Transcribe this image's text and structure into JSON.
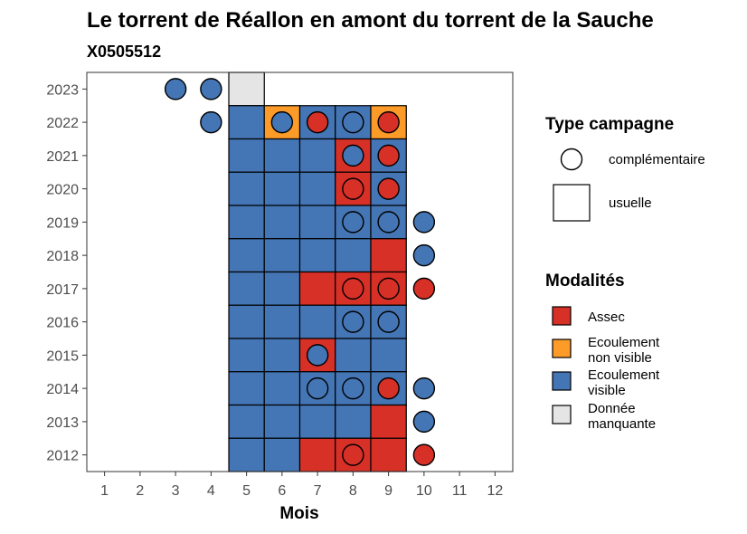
{
  "chart_data": {
    "type": "heatmap",
    "title": "Le torrent de Réallon en amont du torrent de la Sauche",
    "subtitle": "X0505512",
    "xlabel": "Mois",
    "ylabel": "",
    "x_ticks": [
      1,
      2,
      3,
      4,
      5,
      6,
      7,
      8,
      9,
      10,
      11,
      12
    ],
    "y_ticks": [
      2012,
      2013,
      2014,
      2015,
      2016,
      2017,
      2018,
      2019,
      2020,
      2021,
      2022,
      2023
    ],
    "xlim": [
      0.5,
      12.5
    ],
    "ylim": [
      2011.5,
      2023.5
    ],
    "colors": {
      "Assec": "#d73027",
      "Ecoulement non visible": "#fd9b28",
      "Ecoulement visible": "#4475b4",
      "Donnée manquante": "#e5e5e5"
    },
    "squares_usuelle": [
      {
        "year": 2023,
        "month": 5,
        "modalite": "Donnée manquante"
      },
      {
        "year": 2022,
        "month": 5,
        "modalite": "Ecoulement visible"
      },
      {
        "year": 2022,
        "month": 6,
        "modalite": "Ecoulement non visible"
      },
      {
        "year": 2022,
        "month": 7,
        "modalite": "Ecoulement visible"
      },
      {
        "year": 2022,
        "month": 8,
        "modalite": "Ecoulement visible"
      },
      {
        "year": 2022,
        "month": 9,
        "modalite": "Ecoulement non visible"
      },
      {
        "year": 2021,
        "month": 5,
        "modalite": "Ecoulement visible"
      },
      {
        "year": 2021,
        "month": 6,
        "modalite": "Ecoulement visible"
      },
      {
        "year": 2021,
        "month": 7,
        "modalite": "Ecoulement visible"
      },
      {
        "year": 2021,
        "month": 8,
        "modalite": "Assec"
      },
      {
        "year": 2021,
        "month": 9,
        "modalite": "Ecoulement visible"
      },
      {
        "year": 2020,
        "month": 5,
        "modalite": "Ecoulement visible"
      },
      {
        "year": 2020,
        "month": 6,
        "modalite": "Ecoulement visible"
      },
      {
        "year": 2020,
        "month": 7,
        "modalite": "Ecoulement visible"
      },
      {
        "year": 2020,
        "month": 8,
        "modalite": "Assec"
      },
      {
        "year": 2020,
        "month": 9,
        "modalite": "Ecoulement visible"
      },
      {
        "year": 2019,
        "month": 5,
        "modalite": "Ecoulement visible"
      },
      {
        "year": 2019,
        "month": 6,
        "modalite": "Ecoulement visible"
      },
      {
        "year": 2019,
        "month": 7,
        "modalite": "Ecoulement visible"
      },
      {
        "year": 2019,
        "month": 8,
        "modalite": "Ecoulement visible"
      },
      {
        "year": 2019,
        "month": 9,
        "modalite": "Ecoulement visible"
      },
      {
        "year": 2018,
        "month": 5,
        "modalite": "Ecoulement visible"
      },
      {
        "year": 2018,
        "month": 6,
        "modalite": "Ecoulement visible"
      },
      {
        "year": 2018,
        "month": 7,
        "modalite": "Ecoulement visible"
      },
      {
        "year": 2018,
        "month": 8,
        "modalite": "Ecoulement visible"
      },
      {
        "year": 2018,
        "month": 9,
        "modalite": "Assec"
      },
      {
        "year": 2017,
        "month": 5,
        "modalite": "Ecoulement visible"
      },
      {
        "year": 2017,
        "month": 6,
        "modalite": "Ecoulement visible"
      },
      {
        "year": 2017,
        "month": 7,
        "modalite": "Assec"
      },
      {
        "year": 2017,
        "month": 8,
        "modalite": "Assec"
      },
      {
        "year": 2017,
        "month": 9,
        "modalite": "Assec"
      },
      {
        "year": 2016,
        "month": 5,
        "modalite": "Ecoulement visible"
      },
      {
        "year": 2016,
        "month": 6,
        "modalite": "Ecoulement visible"
      },
      {
        "year": 2016,
        "month": 7,
        "modalite": "Ecoulement visible"
      },
      {
        "year": 2016,
        "month": 8,
        "modalite": "Ecoulement visible"
      },
      {
        "year": 2016,
        "month": 9,
        "modalite": "Ecoulement visible"
      },
      {
        "year": 2015,
        "month": 5,
        "modalite": "Ecoulement visible"
      },
      {
        "year": 2015,
        "month": 6,
        "modalite": "Ecoulement visible"
      },
      {
        "year": 2015,
        "month": 7,
        "modalite": "Assec"
      },
      {
        "year": 2015,
        "month": 8,
        "modalite": "Ecoulement visible"
      },
      {
        "year": 2015,
        "month": 9,
        "modalite": "Ecoulement visible"
      },
      {
        "year": 2014,
        "month": 5,
        "modalite": "Ecoulement visible"
      },
      {
        "year": 2014,
        "month": 6,
        "modalite": "Ecoulement visible"
      },
      {
        "year": 2014,
        "month": 7,
        "modalite": "Ecoulement visible"
      },
      {
        "year": 2014,
        "month": 8,
        "modalite": "Ecoulement visible"
      },
      {
        "year": 2014,
        "month": 9,
        "modalite": "Ecoulement visible"
      },
      {
        "year": 2013,
        "month": 5,
        "modalite": "Ecoulement visible"
      },
      {
        "year": 2013,
        "month": 6,
        "modalite": "Ecoulement visible"
      },
      {
        "year": 2013,
        "month": 7,
        "modalite": "Ecoulement visible"
      },
      {
        "year": 2013,
        "month": 8,
        "modalite": "Ecoulement visible"
      },
      {
        "year": 2013,
        "month": 9,
        "modalite": "Assec"
      },
      {
        "year": 2012,
        "month": 5,
        "modalite": "Ecoulement visible"
      },
      {
        "year": 2012,
        "month": 6,
        "modalite": "Ecoulement visible"
      },
      {
        "year": 2012,
        "month": 7,
        "modalite": "Assec"
      },
      {
        "year": 2012,
        "month": 8,
        "modalite": "Assec"
      },
      {
        "year": 2012,
        "month": 9,
        "modalite": "Assec"
      }
    ],
    "circles_complementaire": [
      {
        "year": 2023,
        "month": 3,
        "modalite": "Ecoulement visible"
      },
      {
        "year": 2023,
        "month": 4,
        "modalite": "Ecoulement visible"
      },
      {
        "year": 2022,
        "month": 4,
        "modalite": "Ecoulement visible"
      },
      {
        "year": 2022,
        "month": 6,
        "modalite": "Ecoulement visible"
      },
      {
        "year": 2022,
        "month": 7,
        "modalite": "Assec"
      },
      {
        "year": 2022,
        "month": 8,
        "modalite": "Ecoulement visible"
      },
      {
        "year": 2022,
        "month": 9,
        "modalite": "Assec"
      },
      {
        "year": 2021,
        "month": 8,
        "modalite": "Ecoulement visible"
      },
      {
        "year": 2021,
        "month": 9,
        "modalite": "Assec"
      },
      {
        "year": 2020,
        "month": 8,
        "modalite": "Assec"
      },
      {
        "year": 2020,
        "month": 9,
        "modalite": "Assec"
      },
      {
        "year": 2019,
        "month": 8,
        "modalite": "Ecoulement visible"
      },
      {
        "year": 2019,
        "month": 9,
        "modalite": "Ecoulement visible"
      },
      {
        "year": 2019,
        "month": 10,
        "modalite": "Ecoulement visible"
      },
      {
        "year": 2018,
        "month": 10,
        "modalite": "Ecoulement visible"
      },
      {
        "year": 2017,
        "month": 8,
        "modalite": "Assec"
      },
      {
        "year": 2017,
        "month": 9,
        "modalite": "Assec"
      },
      {
        "year": 2017,
        "month": 10,
        "modalite": "Assec"
      },
      {
        "year": 2016,
        "month": 8,
        "modalite": "Ecoulement visible"
      },
      {
        "year": 2016,
        "month": 9,
        "modalite": "Ecoulement visible"
      },
      {
        "year": 2015,
        "month": 7,
        "modalite": "Ecoulement visible"
      },
      {
        "year": 2014,
        "month": 7,
        "modalite": "Ecoulement visible"
      },
      {
        "year": 2014,
        "month": 8,
        "modalite": "Ecoulement visible"
      },
      {
        "year": 2014,
        "month": 9,
        "modalite": "Assec"
      },
      {
        "year": 2014,
        "month": 10,
        "modalite": "Ecoulement visible"
      },
      {
        "year": 2013,
        "month": 10,
        "modalite": "Ecoulement visible"
      },
      {
        "year": 2012,
        "month": 8,
        "modalite": "Assec"
      },
      {
        "year": 2012,
        "month": 10,
        "modalite": "Assec"
      }
    ],
    "legend_type": {
      "title": "Type campagne",
      "items": [
        {
          "label": "complémentaire",
          "shape": "circle"
        },
        {
          "label": "usuelle",
          "shape": "square"
        }
      ]
    },
    "legend_modalites": {
      "title": "Modalités",
      "items": [
        {
          "key": "Assec",
          "lines": [
            "Assec"
          ]
        },
        {
          "key": "Ecoulement non visible",
          "lines": [
            "Ecoulement",
            "non visible"
          ]
        },
        {
          "key": "Ecoulement visible",
          "lines": [
            "Ecoulement",
            "visible"
          ]
        },
        {
          "key": "Donnée manquante",
          "lines": [
            "Donnée",
            "manquante"
          ]
        }
      ]
    },
    "legend_position": "right",
    "grid": false
  }
}
